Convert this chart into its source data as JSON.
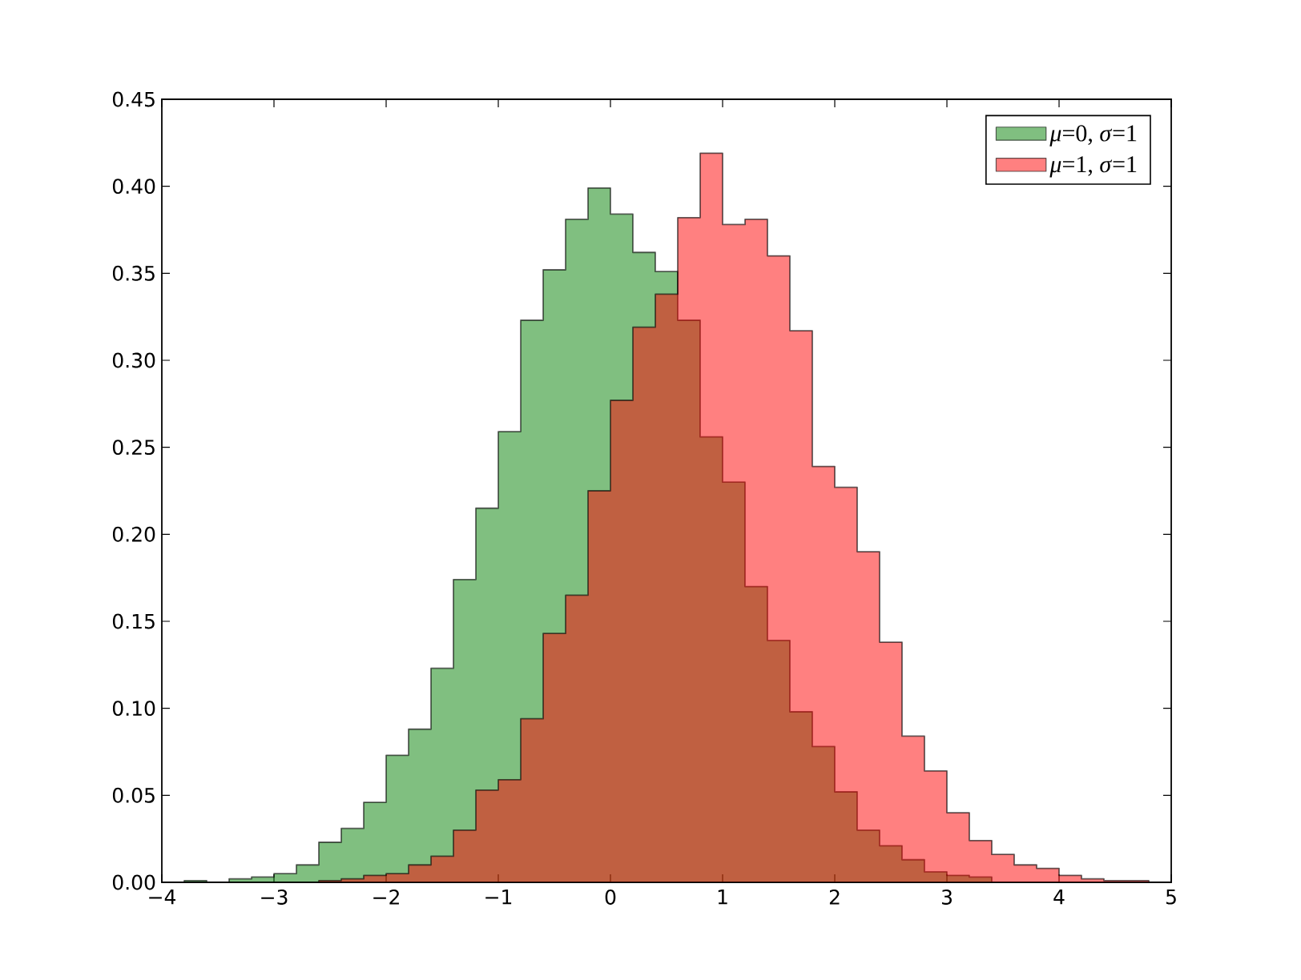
{
  "chart_data": {
    "type": "histogram",
    "bins": [
      -3.8,
      -3.6,
      -3.4,
      -3.2,
      -3.0,
      -2.8,
      -2.6,
      -2.4,
      -2.2,
      -2.0,
      -1.8,
      -1.6,
      -1.4,
      -1.2,
      -1.0,
      -0.8,
      -0.6,
      -0.4,
      -0.2,
      0.0,
      0.2,
      0.4,
      0.6,
      0.8,
      1.0,
      1.2,
      1.4,
      1.6,
      1.8,
      2.0,
      2.2,
      2.4,
      2.6,
      2.8,
      3.0,
      3.2,
      3.4,
      3.6,
      3.8,
      4.0,
      4.2,
      4.4,
      4.6,
      4.8
    ],
    "series": [
      {
        "name": "*μ*=0, *σ*=1",
        "color": "#80bf80",
        "values": [
          0.001,
          0,
          0.002,
          0.003,
          0.005,
          0.01,
          0.023,
          0.031,
          0.046,
          0.073,
          0.088,
          0.123,
          0.174,
          0.215,
          0.259,
          0.323,
          0.352,
          0.381,
          0.399,
          0.384,
          0.362,
          0.351,
          0.323,
          0.256,
          0.23,
          0.17,
          0.139,
          0.098,
          0.078,
          0.052,
          0.03,
          0.021,
          0.013,
          0.006,
          0.004,
          0.003,
          0,
          0,
          0,
          0,
          0,
          0,
          0
        ]
      },
      {
        "name": "*μ*=1, *σ*=1",
        "color": "#ff8080",
        "values": [
          0,
          0,
          0,
          0,
          0,
          0,
          0.001,
          0.002,
          0.004,
          0.005,
          0.01,
          0.015,
          0.03,
          0.053,
          0.059,
          0.094,
          0.143,
          0.165,
          0.225,
          0.277,
          0.319,
          0.338,
          0.382,
          0.419,
          0.378,
          0.381,
          0.36,
          0.317,
          0.239,
          0.227,
          0.19,
          0.138,
          0.084,
          0.064,
          0.04,
          0.024,
          0.016,
          0.01,
          0.008,
          0.004,
          0.002,
          0.001,
          0.001
        ]
      }
    ],
    "xlim": [
      -4,
      5
    ],
    "ylim": [
      0,
      0.45
    ],
    "xticks": [
      {
        "value": -4,
        "label": "−4"
      },
      {
        "value": -3,
        "label": "−3"
      },
      {
        "value": -2,
        "label": "−2"
      },
      {
        "value": -1,
        "label": "−1"
      },
      0,
      1,
      2,
      3,
      4,
      5
    ],
    "yticks": [
      {
        "value": 0,
        "label": "0.00"
      },
      {
        "value": 0.05,
        "label": "0.05"
      },
      {
        "value": 0.1,
        "label": "0.10"
      },
      {
        "value": 0.15,
        "label": "0.15"
      },
      {
        "value": 0.2,
        "label": "0.20"
      },
      {
        "value": 0.25,
        "label": "0.25"
      },
      {
        "value": 0.3,
        "label": "0.30"
      },
      {
        "value": 0.35,
        "label": "0.35"
      },
      {
        "value": 0.4,
        "label": "0.40"
      },
      {
        "value": 0.45,
        "label": "0.45"
      }
    ],
    "legend": "top right"
  }
}
